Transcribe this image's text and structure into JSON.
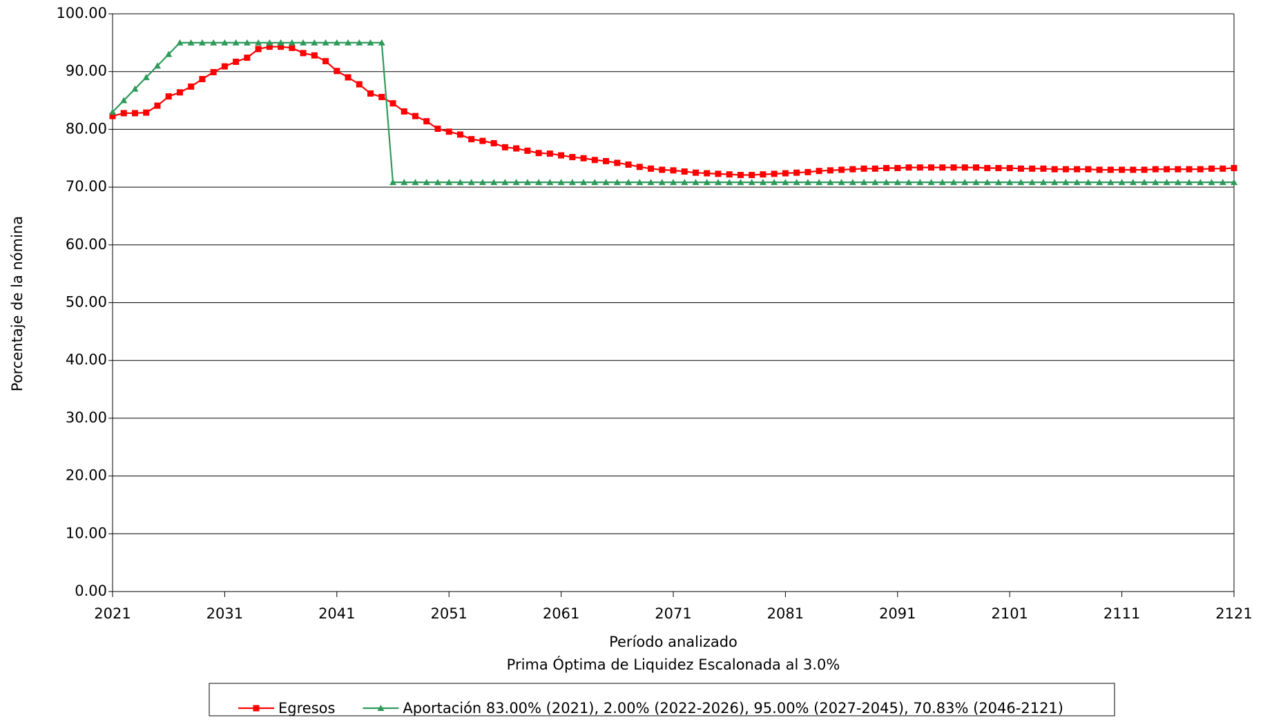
{
  "chart_data": {
    "type": "line",
    "xlabel": "Período analizado",
    "subtitle": "Prima Óptima de Liquidez Escalonada al 3.0%",
    "ylabel": "Porcentaje de la nómina",
    "x": [
      2021,
      2022,
      2023,
      2024,
      2025,
      2026,
      2027,
      2028,
      2029,
      2030,
      2031,
      2032,
      2033,
      2034,
      2035,
      2036,
      2037,
      2038,
      2039,
      2040,
      2041,
      2042,
      2043,
      2044,
      2045,
      2046,
      2047,
      2048,
      2049,
      2050,
      2051,
      2052,
      2053,
      2054,
      2055,
      2056,
      2057,
      2058,
      2059,
      2060,
      2061,
      2062,
      2063,
      2064,
      2065,
      2066,
      2067,
      2068,
      2069,
      2070,
      2071,
      2072,
      2073,
      2074,
      2075,
      2076,
      2077,
      2078,
      2079,
      2080,
      2081,
      2082,
      2083,
      2084,
      2085,
      2086,
      2087,
      2088,
      2089,
      2090,
      2091,
      2092,
      2093,
      2094,
      2095,
      2096,
      2097,
      2098,
      2099,
      2100,
      2101,
      2102,
      2103,
      2104,
      2105,
      2106,
      2107,
      2108,
      2109,
      2110,
      2111,
      2112,
      2113,
      2114,
      2115,
      2116,
      2117,
      2118,
      2119,
      2120,
      2121
    ],
    "series": [
      {
        "name": "Egresos",
        "color": "#ff0000",
        "marker": "square",
        "values": [
          82.3,
          82.8,
          82.8,
          82.9,
          84.1,
          85.7,
          86.4,
          87.4,
          88.7,
          89.9,
          90.9,
          91.7,
          92.4,
          93.9,
          94.3,
          94.3,
          94.1,
          93.2,
          92.8,
          91.8,
          90.1,
          89.0,
          87.8,
          86.2,
          85.6,
          84.5,
          83.1,
          82.3,
          81.4,
          80.1,
          79.6,
          79.1,
          78.3,
          78.0,
          77.6,
          76.9,
          76.7,
          76.3,
          75.9,
          75.8,
          75.5,
          75.2,
          75.0,
          74.7,
          74.5,
          74.2,
          73.9,
          73.5,
          73.2,
          73.0,
          72.9,
          72.7,
          72.5,
          72.4,
          72.3,
          72.2,
          72.1,
          72.1,
          72.2,
          72.3,
          72.4,
          72.5,
          72.6,
          72.8,
          72.9,
          73.0,
          73.1,
          73.2,
          73.2,
          73.3,
          73.3,
          73.4,
          73.4,
          73.4,
          73.4,
          73.4,
          73.4,
          73.4,
          73.3,
          73.3,
          73.3,
          73.2,
          73.2,
          73.2,
          73.1,
          73.1,
          73.1,
          73.1,
          73.0,
          73.0,
          73.0,
          73.0,
          73.0,
          73.1,
          73.1,
          73.1,
          73.1,
          73.1,
          73.2,
          73.2,
          73.3
        ]
      },
      {
        "name": "Aportación 83.00% (2021), 2.00% (2022-2026), 95.00% (2027-2045), 70.83% (2046-2121)",
        "color": "#2e9a5a",
        "marker": "triangle",
        "values": [
          83,
          85,
          87,
          89,
          91,
          93,
          95,
          95,
          95,
          95,
          95,
          95,
          95,
          95,
          95,
          95,
          95,
          95,
          95,
          95,
          95,
          95,
          95,
          95,
          95,
          70.83,
          70.83,
          70.83,
          70.83,
          70.83,
          70.83,
          70.83,
          70.83,
          70.83,
          70.83,
          70.83,
          70.83,
          70.83,
          70.83,
          70.83,
          70.83,
          70.83,
          70.83,
          70.83,
          70.83,
          70.83,
          70.83,
          70.83,
          70.83,
          70.83,
          70.83,
          70.83,
          70.83,
          70.83,
          70.83,
          70.83,
          70.83,
          70.83,
          70.83,
          70.83,
          70.83,
          70.83,
          70.83,
          70.83,
          70.83,
          70.83,
          70.83,
          70.83,
          70.83,
          70.83,
          70.83,
          70.83,
          70.83,
          70.83,
          70.83,
          70.83,
          70.83,
          70.83,
          70.83,
          70.83,
          70.83,
          70.83,
          70.83,
          70.83,
          70.83,
          70.83,
          70.83,
          70.83,
          70.83,
          70.83,
          70.83,
          70.83,
          70.83,
          70.83,
          70.83,
          70.83,
          70.83,
          70.83,
          70.83,
          70.83,
          70.83
        ]
      }
    ],
    "xlim": [
      2021,
      2121
    ],
    "xticks": [
      2021,
      2031,
      2041,
      2051,
      2061,
      2071,
      2081,
      2091,
      2101,
      2111,
      2121
    ],
    "ylim": [
      0,
      100
    ],
    "yticks": [
      {
        "value": 0,
        "label": "0.00"
      },
      {
        "value": 10,
        "label": "10.00"
      },
      {
        "value": 20,
        "label": "20.00"
      },
      {
        "value": 30,
        "label": "30.00"
      },
      {
        "value": 40,
        "label": "40.00"
      },
      {
        "value": 50,
        "label": "50.00"
      },
      {
        "value": 60,
        "label": "60.00"
      },
      {
        "value": 70,
        "label": "70.00"
      },
      {
        "value": 80,
        "label": "80.00"
      },
      {
        "value": 90,
        "label": "90.00"
      },
      {
        "value": 100,
        "label": "100.00"
      }
    ],
    "grid": true,
    "legend": "bottom"
  }
}
